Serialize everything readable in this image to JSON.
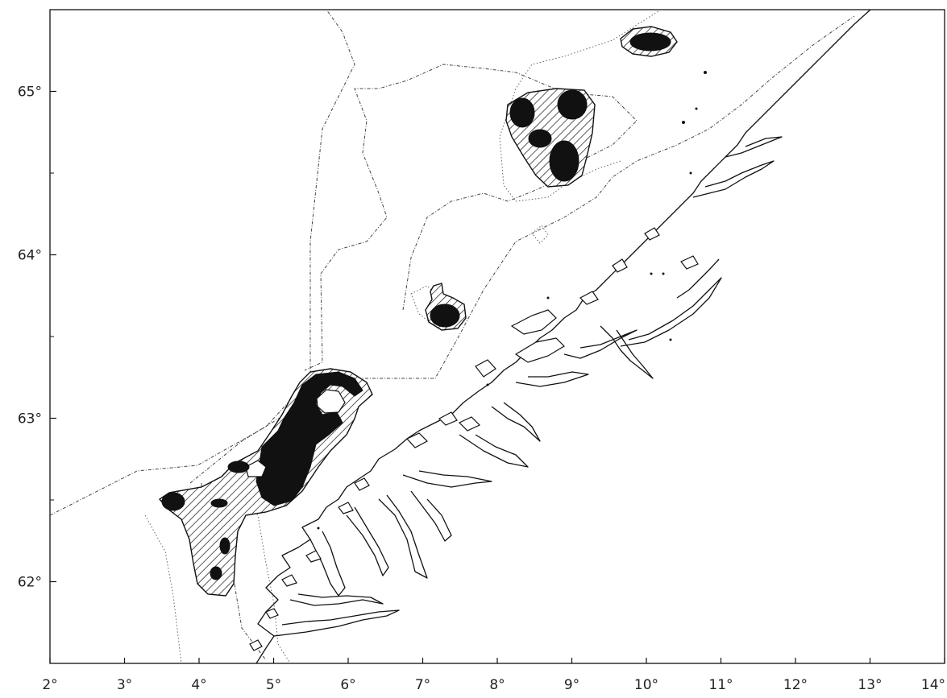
{
  "map": {
    "x_axis": {
      "ticks": [
        "2°",
        "3°",
        "4°",
        "5°",
        "6°",
        "7°",
        "8°",
        "9°",
        "10°",
        "11°",
        "12°",
        "13°",
        "14°"
      ],
      "lon_values": [
        2,
        3,
        4,
        5,
        6,
        7,
        8,
        9,
        10,
        11,
        12,
        13,
        14
      ]
    },
    "y_axis": {
      "ticks": [
        "62°",
        "63°",
        "64°",
        "65°"
      ],
      "lat_values": [
        62,
        63,
        64,
        65
      ],
      "minor_lat_values": [
        61.5,
        62.5,
        63.5,
        64.5
      ]
    },
    "extent": {
      "lon": [
        2,
        14
      ],
      "lat": [
        61.5,
        65.5
      ]
    },
    "legend": "none",
    "colors": {
      "ink": "#111111",
      "background": "#ffffff"
    },
    "features": [
      "coastline",
      "depth-contours",
      "hatched-distribution-areas",
      "solid-core-areas"
    ]
  }
}
